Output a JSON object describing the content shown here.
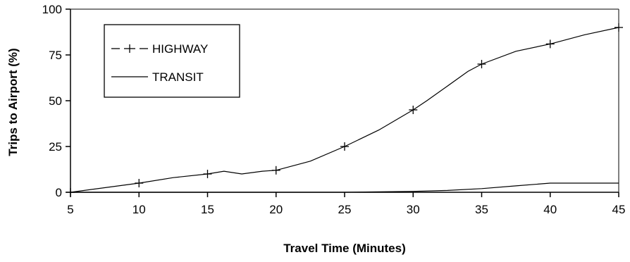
{
  "chart_data": {
    "type": "line",
    "xlabel": "Travel Time (Minutes)",
    "ylabel": "Trips to Airport (%)",
    "xlim": [
      5,
      45
    ],
    "ylim": [
      0,
      100
    ],
    "x_ticks": [
      "5",
      "10",
      "15",
      "20",
      "25",
      "30",
      "35",
      "40",
      "45"
    ],
    "y_ticks": [
      "0",
      "25",
      "50",
      "75",
      "100"
    ],
    "grid": false,
    "legend": {
      "placement": "top-left",
      "entries": [
        "HIGHWAY",
        "TRANSIT"
      ]
    },
    "series": [
      {
        "name": "HIGHWAY",
        "marker": "plus",
        "x": [
          5,
          10,
          12.5,
          15,
          16.2,
          17.5,
          19,
          20,
          22.5,
          25,
          27.5,
          30,
          31,
          32.5,
          34,
          35,
          37.5,
          40,
          42.5,
          45
        ],
        "y": [
          0,
          5,
          8,
          10,
          11.5,
          10,
          11.5,
          12,
          17,
          25,
          34,
          45,
          50,
          58,
          66,
          70,
          77,
          81,
          86,
          90
        ],
        "marker_x": [
          5,
          10,
          15,
          20,
          25,
          30,
          35,
          40,
          45
        ]
      },
      {
        "name": "TRANSIT",
        "marker": "none",
        "x": [
          5,
          10,
          15,
          20,
          25,
          30,
          32.5,
          35,
          37.5,
          40,
          42.5,
          45
        ],
        "y": [
          0,
          0,
          0,
          0,
          0,
          0.5,
          1,
          2,
          3.5,
          5,
          5,
          5
        ]
      }
    ]
  }
}
